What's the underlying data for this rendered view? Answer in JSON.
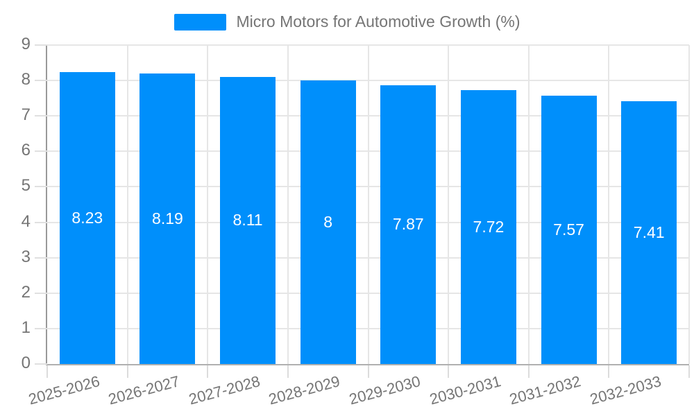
{
  "chart_data": {
    "type": "bar",
    "title": "Micro Motors for Automotive Growth (%)",
    "legend_entries": [
      "Micro Motors for Automotive Growth (%)"
    ],
    "legend_position": "top",
    "categories": [
      "2025-2026",
      "2026-2027",
      "2027-2028",
      "2028-2029",
      "2029-2030",
      "2030-2031",
      "2031-2032",
      "2032-2033"
    ],
    "values": [
      8.23,
      8.19,
      8.11,
      8,
      7.87,
      7.72,
      7.57,
      7.41
    ],
    "xlabel": "",
    "ylabel": "",
    "ylim": [
      0,
      9
    ],
    "yticks": [
      0,
      1,
      2,
      3,
      4,
      5,
      6,
      7,
      8,
      9
    ],
    "grid": "on",
    "value_labels_shown": true,
    "x_label_rotation_deg": -15,
    "colors": {
      "bar": "#008FFB",
      "value_label": "#ffffff",
      "axis_label": "#757575",
      "legend_text": "#757575"
    }
  }
}
